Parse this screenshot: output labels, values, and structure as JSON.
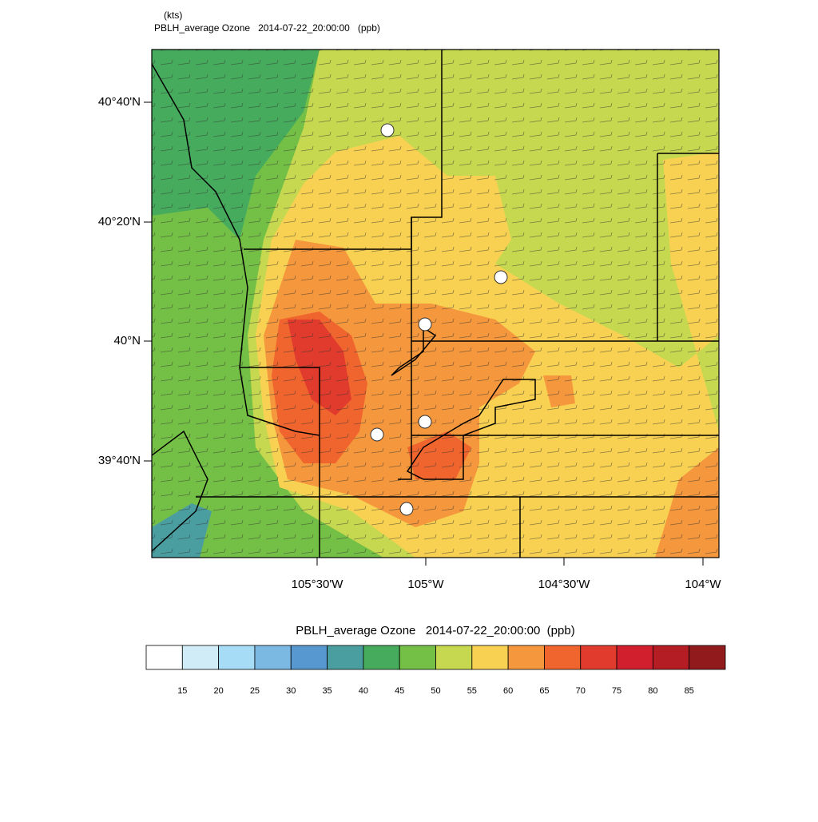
{
  "header": {
    "units": "(kts)",
    "title": "PBLH_average Ozone   2014-07-22_20:00:00   (ppb)"
  },
  "map": {
    "lat_labels": [
      "40°40'N",
      "40°20'N",
      "40°N",
      "39°40'N"
    ],
    "lon_labels": [
      "105°30'W",
      "105°W",
      "104°30'W",
      "104°W"
    ]
  },
  "colorbar": {
    "title": "PBLH_average Ozone   2014-07-22_20:00:00  (ppb)",
    "colors": [
      "#ffffff",
      "#d0ecf7",
      "#a6dcf5",
      "#7bb9e3",
      "#5898d0",
      "#4a9ea0",
      "#46ab5c",
      "#74c046",
      "#c6d84f",
      "#f8d152",
      "#f5973c",
      "#f0642e",
      "#e03b2c",
      "#d21f2d",
      "#b51d24",
      "#911a1d"
    ],
    "labels": [
      15,
      20,
      25,
      30,
      35,
      40,
      45,
      50,
      55,
      60,
      65,
      70,
      75,
      80,
      85
    ]
  }
}
